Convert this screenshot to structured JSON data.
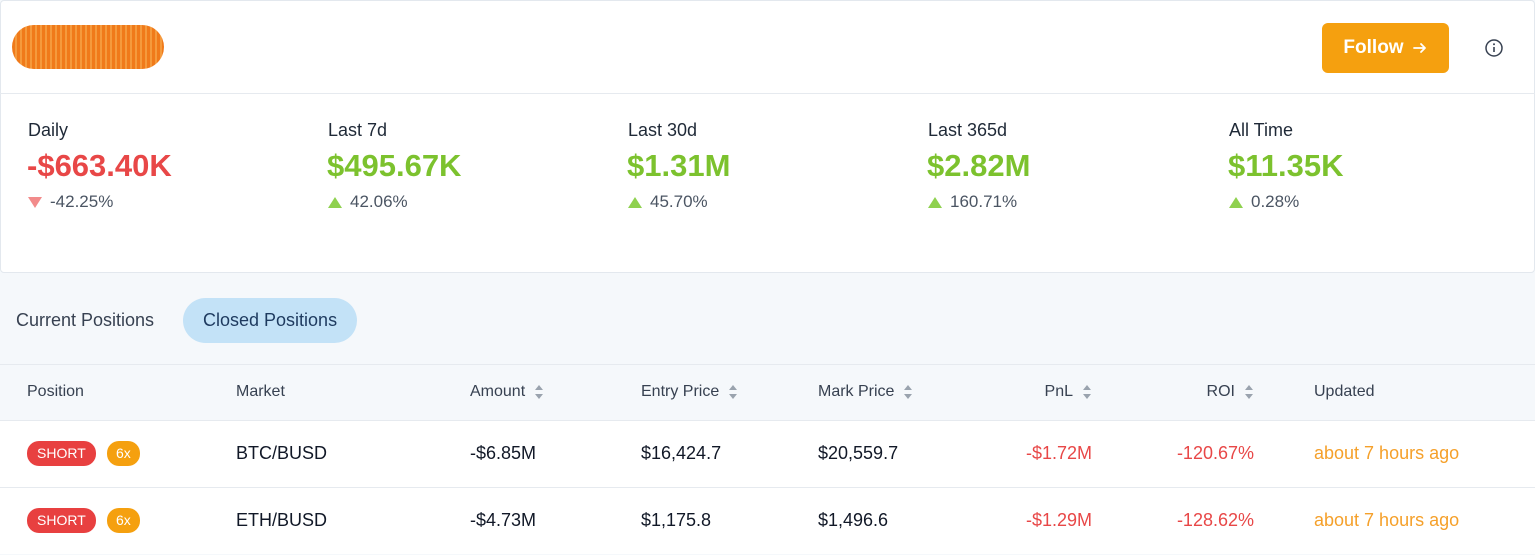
{
  "header": {
    "follow_button": "Follow"
  },
  "stats": [
    {
      "label": "Daily",
      "value": "-$663.40K",
      "change": "-42.25%",
      "direction": "down"
    },
    {
      "label": "Last 7d",
      "value": "$495.67K",
      "change": "42.06%",
      "direction": "up"
    },
    {
      "label": "Last 30d",
      "value": "$1.31M",
      "change": "45.70%",
      "direction": "up"
    },
    {
      "label": "Last 365d",
      "value": "$2.82M",
      "change": "160.71%",
      "direction": "up"
    },
    {
      "label": "All Time",
      "value": "$11.35K",
      "change": "0.28%",
      "direction": "up"
    }
  ],
  "tabs": {
    "items": [
      "Current Positions",
      "Closed Positions"
    ],
    "active": 1
  },
  "table": {
    "columns": [
      {
        "label": "Position",
        "sortable": false
      },
      {
        "label": "Market",
        "sortable": false
      },
      {
        "label": "Amount",
        "sortable": true
      },
      {
        "label": "Entry Price",
        "sortable": true
      },
      {
        "label": "Mark Price",
        "sortable": true
      },
      {
        "label": "PnL",
        "sortable": true
      },
      {
        "label": "ROI",
        "sortable": true
      },
      {
        "label": "Updated",
        "sortable": false
      }
    ],
    "rows": [
      {
        "side": "SHORT",
        "leverage": "6x",
        "cells": [
          "BTC/BUSD",
          "-$6.85M",
          "$16,424.7",
          "$20,559.7",
          "-$1.72M",
          "-120.67%",
          "about 7 hours ago"
        ]
      },
      {
        "side": "SHORT",
        "leverage": "6x",
        "cells": [
          "ETH/BUSD",
          "-$4.73M",
          "$1,175.8",
          "$1,496.6",
          "-$1.29M",
          "-128.62%",
          "about 7 hours ago"
        ]
      }
    ]
  }
}
